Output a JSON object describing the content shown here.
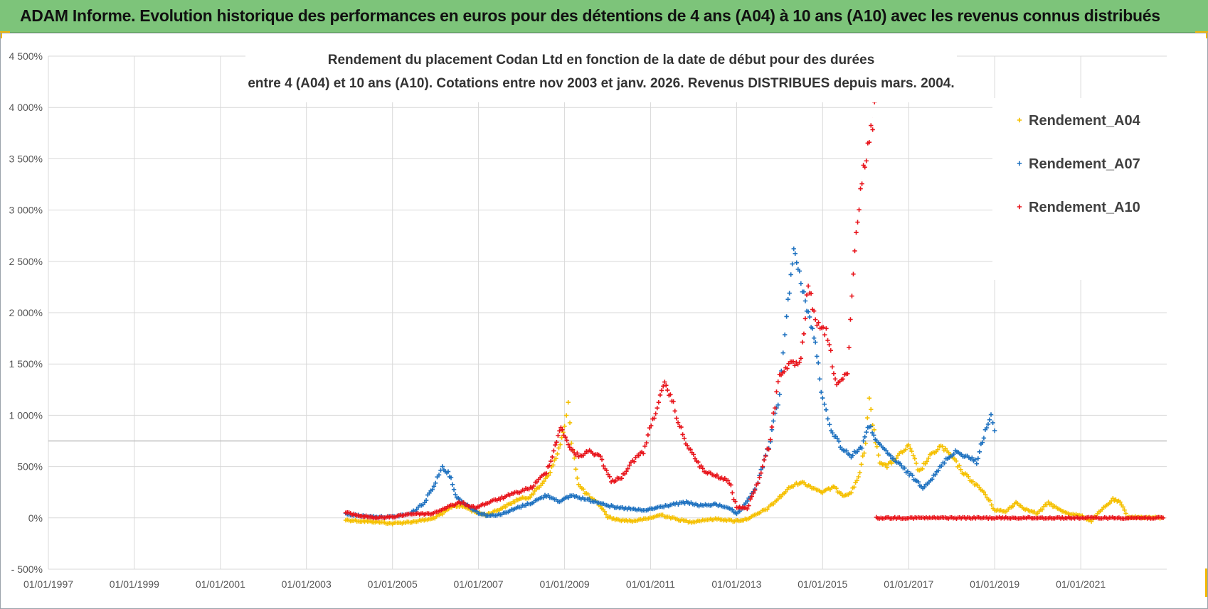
{
  "header": {
    "title": "ADAM Informe. Evolution historique des performances en euros pour des détentions de 4 ans (A04) à 10 ans (A10) avec les revenus connus distribués"
  },
  "colors": {
    "header_bg": "#7dc47a",
    "A04": "#f5c000",
    "A07": "#1f72c0",
    "A10": "#e8141b",
    "corner_accent": "#f2b705"
  },
  "chart_data": {
    "type": "scatter",
    "title_line1": "Rendement du placement Codan Ltd en fonction de la date de début pour des durées",
    "title_line2": "entre 4 (A04) et 10 ans (A10). Cotations entre nov 2003 et janv. 2026. Revenus DISTRIBUES depuis mars. 2004.",
    "xlabel": "",
    "ylabel": "",
    "x_tick_labels": [
      "01/01/1997",
      "01/01/1999",
      "01/01/2001",
      "01/01/2003",
      "01/01/2005",
      "01/01/2007",
      "01/01/2009",
      "01/01/2011",
      "01/01/2013",
      "01/01/2015",
      "01/01/2017",
      "01/01/2019",
      "01/01/2021"
    ],
    "x_range": [
      "1997-01-01",
      "2023-01-01"
    ],
    "y_tick_labels": [
      "- 500%",
      "0%",
      "500%",
      "1 000%",
      "1 500%",
      "2 000%",
      "2 500%",
      "3 000%",
      "3 500%",
      "4 000%",
      "4 500%"
    ],
    "ylim": [
      -500,
      4500
    ],
    "grid": true,
    "legend_position": "top-right",
    "series": [
      {
        "name": "Rendement_A04",
        "color": "#f5c000",
        "points": [
          [
            "2003-12-01",
            -20
          ],
          [
            "2004-04-01",
            -30
          ],
          [
            "2004-09-01",
            -40
          ],
          [
            "2005-01-01",
            -55
          ],
          [
            "2005-06-01",
            -40
          ],
          [
            "2005-12-01",
            -10
          ],
          [
            "2006-03-01",
            40
          ],
          [
            "2006-06-01",
            120
          ],
          [
            "2006-09-01",
            110
          ],
          [
            "2006-12-01",
            60
          ],
          [
            "2007-03-01",
            30
          ],
          [
            "2007-06-01",
            70
          ],
          [
            "2007-09-01",
            120
          ],
          [
            "2007-12-01",
            180
          ],
          [
            "2008-03-01",
            200
          ],
          [
            "2008-06-01",
            300
          ],
          [
            "2008-09-01",
            450
          ],
          [
            "2008-11-01",
            620
          ],
          [
            "2009-01-01",
            880
          ],
          [
            "2009-02-01",
            1100
          ],
          [
            "2009-03-01",
            760
          ],
          [
            "2009-05-01",
            320
          ],
          [
            "2009-08-01",
            200
          ],
          [
            "2009-11-01",
            120
          ],
          [
            "2010-01-01",
            10
          ],
          [
            "2010-04-01",
            -20
          ],
          [
            "2010-08-01",
            -30
          ],
          [
            "2010-12-01",
            -10
          ],
          [
            "2011-04-01",
            30
          ],
          [
            "2011-08-01",
            -10
          ],
          [
            "2011-12-01",
            -40
          ],
          [
            "2012-04-01",
            -20
          ],
          [
            "2012-08-01",
            -10
          ],
          [
            "2012-12-01",
            -30
          ],
          [
            "2013-03-01",
            -20
          ],
          [
            "2013-06-01",
            20
          ],
          [
            "2013-10-01",
            100
          ],
          [
            "2014-01-01",
            200
          ],
          [
            "2014-04-01",
            300
          ],
          [
            "2014-07-01",
            350
          ],
          [
            "2014-10-01",
            300
          ],
          [
            "2015-01-01",
            250
          ],
          [
            "2015-04-01",
            300
          ],
          [
            "2015-07-01",
            220
          ],
          [
            "2015-09-01",
            250
          ],
          [
            "2015-11-01",
            400
          ],
          [
            "2016-01-01",
            700
          ],
          [
            "2016-02-01",
            1200
          ],
          [
            "2016-03-01",
            900
          ],
          [
            "2016-05-01",
            550
          ],
          [
            "2016-07-01",
            500
          ],
          [
            "2016-10-01",
            600
          ],
          [
            "2017-01-01",
            700
          ],
          [
            "2017-04-01",
            450
          ],
          [
            "2017-07-01",
            600
          ],
          [
            "2017-10-01",
            700
          ],
          [
            "2018-01-01",
            600
          ],
          [
            "2018-04-01",
            450
          ],
          [
            "2018-07-01",
            350
          ],
          [
            "2018-10-01",
            250
          ],
          [
            "2019-01-01",
            80
          ],
          [
            "2019-04-01",
            60
          ],
          [
            "2019-07-01",
            150
          ],
          [
            "2019-10-01",
            80
          ],
          [
            "2020-01-01",
            40
          ],
          [
            "2020-04-01",
            150
          ],
          [
            "2020-07-01",
            80
          ],
          [
            "2020-10-01",
            40
          ],
          [
            "2021-01-01",
            20
          ],
          [
            "2021-04-01",
            -30
          ],
          [
            "2021-07-01",
            80
          ],
          [
            "2021-10-01",
            180
          ],
          [
            "2021-12-01",
            150
          ],
          [
            "2022-02-01",
            10
          ],
          [
            "2022-06-01",
            5
          ],
          [
            "2022-12-01",
            0
          ]
        ]
      },
      {
        "name": "Rendement_A07",
        "color": "#1f72c0",
        "points": [
          [
            "2003-12-01",
            40
          ],
          [
            "2004-04-01",
            20
          ],
          [
            "2004-09-01",
            10
          ],
          [
            "2005-01-01",
            10
          ],
          [
            "2005-06-01",
            40
          ],
          [
            "2005-10-01",
            150
          ],
          [
            "2006-01-01",
            350
          ],
          [
            "2006-03-01",
            500
          ],
          [
            "2006-05-01",
            420
          ],
          [
            "2006-07-01",
            200
          ],
          [
            "2006-10-01",
            120
          ],
          [
            "2007-01-01",
            50
          ],
          [
            "2007-04-01",
            20
          ],
          [
            "2007-08-01",
            40
          ],
          [
            "2007-12-01",
            100
          ],
          [
            "2008-04-01",
            150
          ],
          [
            "2008-08-01",
            220
          ],
          [
            "2008-12-01",
            160
          ],
          [
            "2009-03-01",
            220
          ],
          [
            "2009-07-01",
            180
          ],
          [
            "2009-11-01",
            150
          ],
          [
            "2010-03-01",
            100
          ],
          [
            "2010-07-01",
            90
          ],
          [
            "2010-11-01",
            70
          ],
          [
            "2011-03-01",
            100
          ],
          [
            "2011-07-01",
            130
          ],
          [
            "2011-11-01",
            150
          ],
          [
            "2012-03-01",
            120
          ],
          [
            "2012-07-01",
            130
          ],
          [
            "2012-11-01",
            100
          ],
          [
            "2013-01-01",
            30
          ],
          [
            "2013-04-01",
            150
          ],
          [
            "2013-07-01",
            350
          ],
          [
            "2013-10-01",
            700
          ],
          [
            "2014-01-01",
            1200
          ],
          [
            "2014-03-01",
            2000
          ],
          [
            "2014-05-01",
            2600
          ],
          [
            "2014-07-01",
            2300
          ],
          [
            "2014-09-01",
            2000
          ],
          [
            "2014-11-01",
            1700
          ],
          [
            "2015-01-01",
            1150
          ],
          [
            "2015-03-01",
            900
          ],
          [
            "2015-06-01",
            700
          ],
          [
            "2015-09-01",
            600
          ],
          [
            "2015-12-01",
            700
          ],
          [
            "2016-02-01",
            900
          ],
          [
            "2016-05-01",
            700
          ],
          [
            "2016-08-01",
            600
          ],
          [
            "2016-11-01",
            500
          ],
          [
            "2017-02-01",
            400
          ],
          [
            "2017-05-01",
            300
          ],
          [
            "2017-08-01",
            400
          ],
          [
            "2017-11-01",
            550
          ],
          [
            "2018-02-01",
            650
          ],
          [
            "2018-05-01",
            600
          ],
          [
            "2018-08-01",
            550
          ],
          [
            "2018-10-01",
            800
          ],
          [
            "2018-12-01",
            1000
          ],
          [
            "2019-01-01",
            850
          ]
        ]
      },
      {
        "name": "Rendement_A10",
        "color": "#e8141b",
        "points": [
          [
            "2003-12-01",
            50
          ],
          [
            "2004-04-01",
            20
          ],
          [
            "2004-09-01",
            0
          ],
          [
            "2005-01-01",
            10
          ],
          [
            "2005-06-01",
            40
          ],
          [
            "2005-12-01",
            40
          ],
          [
            "2006-04-01",
            100
          ],
          [
            "2006-08-01",
            150
          ],
          [
            "2006-12-01",
            100
          ],
          [
            "2007-04-01",
            150
          ],
          [
            "2007-08-01",
            200
          ],
          [
            "2007-12-01",
            250
          ],
          [
            "2008-04-01",
            300
          ],
          [
            "2008-08-01",
            450
          ],
          [
            "2008-10-01",
            650
          ],
          [
            "2008-12-01",
            900
          ],
          [
            "2009-02-01",
            700
          ],
          [
            "2009-05-01",
            600
          ],
          [
            "2009-08-01",
            650
          ],
          [
            "2009-11-01",
            600
          ],
          [
            "2010-02-01",
            350
          ],
          [
            "2010-05-01",
            400
          ],
          [
            "2010-08-01",
            550
          ],
          [
            "2010-11-01",
            650
          ],
          [
            "2011-02-01",
            1000
          ],
          [
            "2011-05-01",
            1300
          ],
          [
            "2011-07-01",
            1150
          ],
          [
            "2011-10-01",
            800
          ],
          [
            "2012-01-01",
            600
          ],
          [
            "2012-04-01",
            450
          ],
          [
            "2012-08-01",
            400
          ],
          [
            "2012-11-01",
            350
          ],
          [
            "2013-01-01",
            100
          ],
          [
            "2013-04-01",
            100
          ],
          [
            "2013-07-01",
            350
          ],
          [
            "2013-10-01",
            700
          ],
          [
            "2014-01-01",
            1400
          ],
          [
            "2014-04-01",
            1500
          ],
          [
            "2014-07-01",
            1500
          ],
          [
            "2014-09-01",
            2300
          ],
          [
            "2014-11-01",
            1900
          ],
          [
            "2015-02-01",
            1800
          ],
          [
            "2015-05-01",
            1300
          ],
          [
            "2015-08-01",
            1400
          ],
          [
            "2015-10-01",
            2600
          ],
          [
            "2015-12-01",
            3300
          ],
          [
            "2016-02-01",
            3700
          ],
          [
            "2016-03-01",
            3900
          ],
          [
            "2016-04-01",
            0
          ],
          [
            "2017-01-01",
            0
          ],
          [
            "2018-01-01",
            0
          ],
          [
            "2019-01-01",
            0
          ],
          [
            "2020-01-01",
            0
          ],
          [
            "2021-01-01",
            0
          ],
          [
            "2022-01-01",
            0
          ],
          [
            "2022-12-01",
            0
          ]
        ]
      }
    ]
  }
}
